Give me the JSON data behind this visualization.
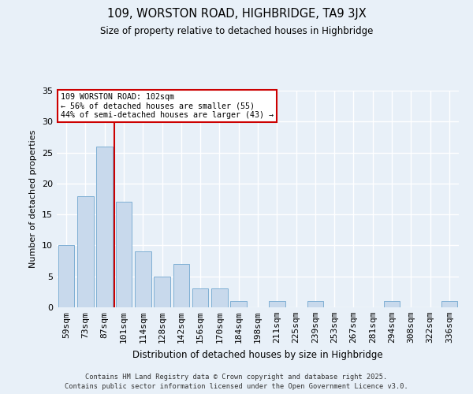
{
  "title": "109, WORSTON ROAD, HIGHBRIDGE, TA9 3JX",
  "subtitle": "Size of property relative to detached houses in Highbridge",
  "xlabel": "Distribution of detached houses by size in Highbridge",
  "ylabel": "Number of detached properties",
  "categories": [
    "59sqm",
    "73sqm",
    "87sqm",
    "101sqm",
    "114sqm",
    "128sqm",
    "142sqm",
    "156sqm",
    "170sqm",
    "184sqm",
    "198sqm",
    "211sqm",
    "225sqm",
    "239sqm",
    "253sqm",
    "267sqm",
    "281sqm",
    "294sqm",
    "308sqm",
    "322sqm",
    "336sqm"
  ],
  "values": [
    10,
    18,
    26,
    17,
    9,
    5,
    7,
    3,
    3,
    1,
    0,
    1,
    0,
    1,
    0,
    0,
    0,
    1,
    0,
    0,
    1
  ],
  "bar_color": "#c8d9ec",
  "bar_edge_color": "#7fafd4",
  "background_color": "#e8f0f8",
  "grid_color": "#ffffff",
  "vline_index": 2.5,
  "vline_color": "#cc0000",
  "annotation_text": "109 WORSTON ROAD: 102sqm\n← 56% of detached houses are smaller (55)\n44% of semi-detached houses are larger (43) →",
  "annotation_box_color": "#ffffff",
  "annotation_box_edge": "#cc0000",
  "ylim": [
    0,
    35
  ],
  "yticks": [
    0,
    5,
    10,
    15,
    20,
    25,
    30,
    35
  ],
  "footer_line1": "Contains HM Land Registry data © Crown copyright and database right 2025.",
  "footer_line2": "Contains public sector information licensed under the Open Government Licence v3.0."
}
